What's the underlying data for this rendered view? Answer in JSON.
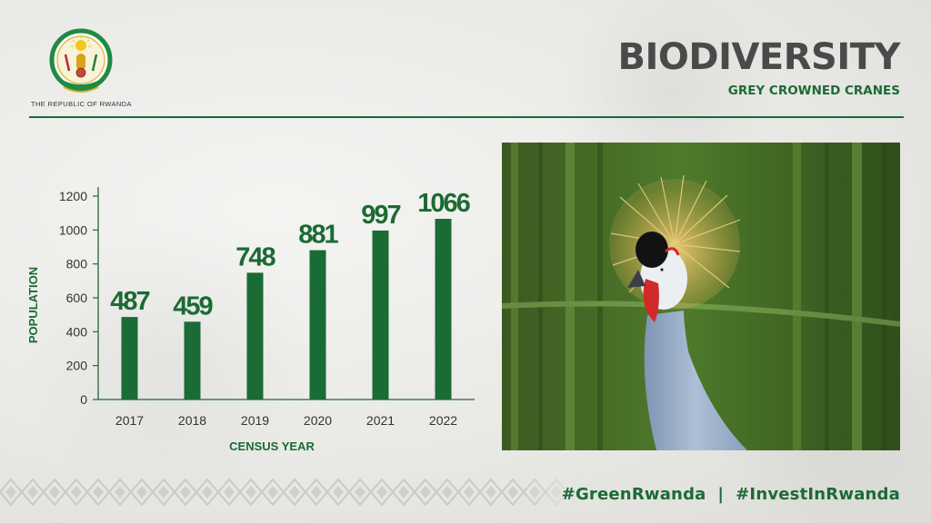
{
  "header": {
    "republic": "THE REPUBLIC OF RWANDA",
    "title": "BIODIVERSITY",
    "subtitle": "GREY CROWNED CRANES"
  },
  "footer": {
    "hashtags": "#GreenRwanda  |  #InvestInRwanda"
  },
  "colors": {
    "accent_green": "#1b6b34",
    "title_gray": "#4a4a4a"
  },
  "icons": [
    "rwanda-coat-of-arms-icon",
    "grey-crowned-crane-photo",
    "basket-weave-pattern"
  ],
  "chart_data": {
    "type": "bar",
    "categories": [
      "2017",
      "2018",
      "2019",
      "2020",
      "2021",
      "2022"
    ],
    "values": [
      487,
      459,
      748,
      881,
      997,
      1066
    ],
    "data_labels": [
      "487",
      "459",
      "748",
      "881",
      "997",
      "1066"
    ],
    "title": "",
    "xlabel": "CENSUS YEAR",
    "ylabel": "POPULATION",
    "ylim": [
      0,
      1200
    ],
    "yticks": [
      0,
      200,
      400,
      600,
      800,
      1000,
      1200
    ],
    "grid": false,
    "legend": "none",
    "bar_color": "#1b6b34"
  }
}
